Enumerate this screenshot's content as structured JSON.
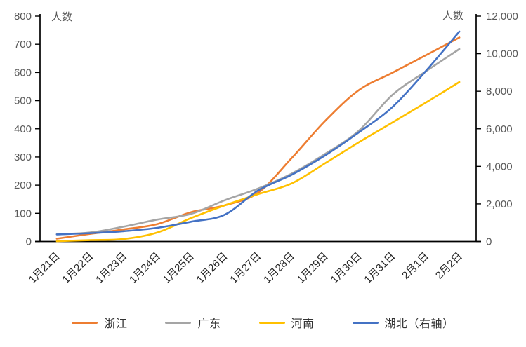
{
  "chart_data": {
    "type": "line",
    "title": "",
    "categories": [
      "1月21日",
      "1月22日",
      "1月23日",
      "1月24日",
      "1月25日",
      "1月26日",
      "1月27日",
      "1月28日",
      "1月29日",
      "1月30日",
      "1月31日",
      "2月1日",
      "2月2日"
    ],
    "series": [
      {
        "key": "zhejiang",
        "name": "浙江",
        "axis": "left",
        "color": "#ED7D31",
        "values": [
          10,
          27,
          43,
          62,
          104,
          128,
          173,
          296,
          428,
          537,
          599,
          661,
          724
        ]
      },
      {
        "key": "guangdong",
        "name": "广东",
        "axis": "left",
        "color": "#A5A5A5",
        "values": [
          26,
          32,
          53,
          78,
          98,
          146,
          188,
          241,
          311,
          393,
          520,
          604,
          683
        ]
      },
      {
        "key": "henan",
        "name": "河南",
        "axis": "left",
        "color": "#FFC000",
        "values": [
          1,
          5,
          9,
          32,
          83,
          128,
          168,
          206,
          278,
          352,
          422,
          493,
          566
        ]
      },
      {
        "key": "hubei",
        "name": "湖北（右轴）",
        "axis": "right",
        "color": "#4472C4",
        "values": [
          375,
          444,
          549,
          729,
          1052,
          1423,
          2714,
          3554,
          4586,
          5806,
          7153,
          9074,
          11177
        ]
      }
    ],
    "left_axis": {
      "title": "人数",
      "min": 0,
      "max": 800,
      "step": 100,
      "tick_labels": [
        "0",
        "100",
        "200",
        "300",
        "400",
        "500",
        "600",
        "700",
        "800"
      ]
    },
    "right_axis": {
      "title": "人数",
      "min": 0,
      "max": 12000,
      "step": 2000,
      "tick_labels": [
        "0",
        "2,000",
        "4,000",
        "6,000",
        "8,000",
        "10,000",
        "12,000"
      ]
    },
    "smoothed": true,
    "grid": false,
    "legend_position": "bottom",
    "line_width": 2.6,
    "colors": {
      "axis": "#000000",
      "y_tick_label": "#595959",
      "x_tick_label": "#262626",
      "axis_title": "#595959",
      "legend_text": "#333333",
      "background": "#ffffff"
    }
  }
}
